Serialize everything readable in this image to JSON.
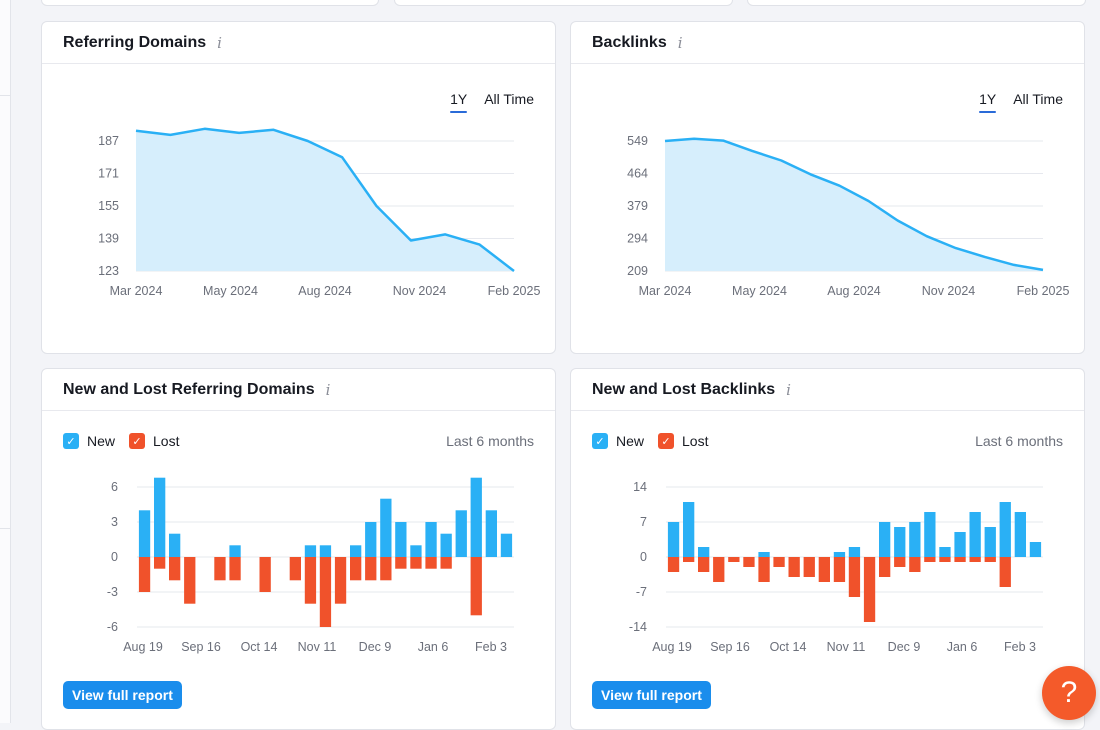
{
  "panels": {
    "referring_domains": {
      "title": "Referring Domains",
      "tabs": [
        "1Y",
        "All Time"
      ],
      "active_tab": "1Y"
    },
    "backlinks": {
      "title": "Backlinks",
      "tabs": [
        "1Y",
        "All Time"
      ],
      "active_tab": "1Y"
    },
    "new_lost_domains": {
      "title": "New and Lost Referring Domains",
      "legend_new": "New",
      "legend_lost": "Lost",
      "period": "Last 6 months",
      "button": "View full report"
    },
    "new_lost_backlinks": {
      "title": "New and Lost Backlinks",
      "legend_new": "New",
      "legend_lost": "Lost",
      "period": "Last 6 months",
      "button": "View full report"
    }
  },
  "help_button": "?",
  "colors": {
    "area_line": "#2ab0f5",
    "area_fill": "#d6eefc",
    "new_bar": "#2ab0f5",
    "lost_bar": "#f0522b",
    "button": "#1a8dec",
    "help": "#f45a2a"
  },
  "chart_data": [
    {
      "id": "referring_domains",
      "type": "area",
      "x_ticks": [
        "Mar 2024",
        "May 2024",
        "Aug 2024",
        "Nov 2024",
        "Feb 2025"
      ],
      "y_ticks": [
        123,
        139,
        155,
        171,
        187
      ],
      "ylim": [
        123,
        187
      ],
      "values": [
        192,
        190,
        193,
        191,
        192.5,
        187,
        179,
        155,
        138,
        141,
        136,
        123
      ],
      "grid": true
    },
    {
      "id": "backlinks",
      "type": "area",
      "x_ticks": [
        "Mar 2024",
        "May 2024",
        "Aug 2024",
        "Nov 2024",
        "Feb 2025"
      ],
      "y_ticks": [
        209,
        294,
        379,
        464,
        549
      ],
      "ylim": [
        209,
        549
      ],
      "values": [
        549,
        555,
        550,
        523,
        498,
        462,
        432,
        392,
        341,
        300,
        269,
        246,
        225,
        212
      ],
      "grid": true
    },
    {
      "id": "new_lost_domains",
      "type": "bar",
      "x_ticks": [
        "Aug 19",
        "Sep 16",
        "Oct 14",
        "Nov 11",
        "Dec 9",
        "Jan 6",
        "Feb 3"
      ],
      "y_ticks": [
        -6,
        -3,
        0,
        3,
        6
      ],
      "ylim": [
        -6,
        6
      ],
      "series": [
        {
          "name": "New",
          "values": [
            4,
            6.8,
            2,
            0,
            0,
            0,
            1,
            0,
            0,
            0,
            0,
            1,
            1,
            0,
            1,
            3,
            5,
            3,
            1,
            3,
            2,
            4,
            6.8,
            4,
            2
          ]
        },
        {
          "name": "Lost",
          "values": [
            -3,
            -1,
            -2,
            -4,
            0,
            -2,
            -2,
            0,
            -3,
            0,
            -2,
            -4,
            -6,
            -4,
            -2,
            -2,
            -2,
            -1,
            -1,
            -1,
            -1,
            0,
            -5,
            0,
            0
          ]
        }
      ]
    },
    {
      "id": "new_lost_backlinks",
      "type": "bar",
      "x_ticks": [
        "Aug 19",
        "Sep 16",
        "Oct 14",
        "Nov 11",
        "Dec 9",
        "Jan 6",
        "Feb 3"
      ],
      "y_ticks": [
        -14,
        -7,
        0,
        7,
        14
      ],
      "ylim": [
        -14,
        14
      ],
      "series": [
        {
          "name": "New",
          "values": [
            7,
            11,
            2,
            0,
            0,
            0,
            1,
            0,
            0,
            0,
            0,
            1,
            2,
            0,
            7,
            6,
            7,
            9,
            2,
            5,
            9,
            6,
            11,
            9,
            3
          ]
        },
        {
          "name": "Lost",
          "values": [
            -3,
            -1,
            -3,
            -5,
            -1,
            -2,
            -5,
            -2,
            -4,
            -4,
            -5,
            -5,
            -8,
            -13,
            -4,
            -2,
            -3,
            -1,
            -1,
            -1,
            -1,
            -1,
            -6,
            0,
            0
          ]
        }
      ]
    }
  ]
}
